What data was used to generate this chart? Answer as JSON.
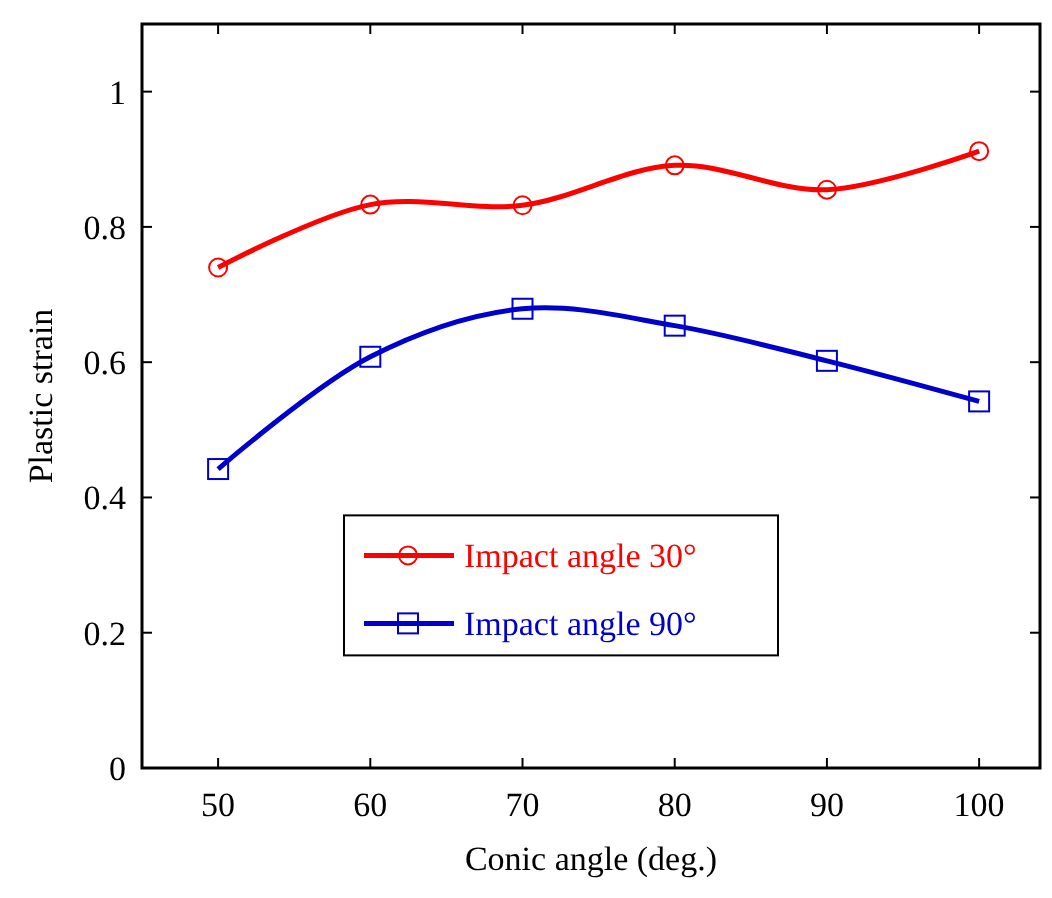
{
  "chart_data": {
    "type": "line",
    "xlabel": "Conic angle (deg.)",
    "ylabel": "Plastic strain",
    "x": [
      50,
      60,
      70,
      80,
      90,
      100
    ],
    "series": [
      {
        "name": "Impact angle 30°",
        "color": "#ff0000",
        "marker": "circle",
        "values": [
          0.74,
          0.833,
          0.832,
          0.891,
          0.855,
          0.912
        ]
      },
      {
        "name": "Impact angle 90°",
        "color": "#0000cc",
        "marker": "square",
        "values": [
          0.442,
          0.608,
          0.679,
          0.654,
          0.602,
          0.542
        ]
      }
    ],
    "xlim": [
      45,
      104
    ],
    "ylim": [
      0,
      1.1
    ],
    "xticks": [
      50,
      60,
      70,
      80,
      90,
      100
    ],
    "yticks": [
      0,
      0.2,
      0.4,
      0.6,
      0.8,
      1
    ],
    "grid": false,
    "legend": "bottom",
    "line_style": "solid"
  }
}
